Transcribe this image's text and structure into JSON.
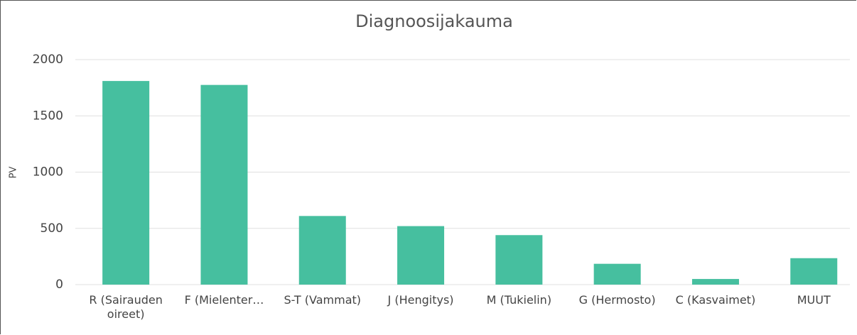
{
  "chart_data": {
    "type": "bar",
    "title": "Diagnoosijakauma",
    "y_label": "PV",
    "categories": [
      "R (Sairauden oireet)",
      "F (Mielenter…",
      "S-T (Vammat)",
      "J (Hengitys)",
      "M (Tukielin)",
      "G (Hermosto)",
      "C (Kasvaimet)",
      "MUUT"
    ],
    "values": [
      1810,
      1775,
      610,
      520,
      440,
      185,
      50,
      235
    ],
    "color": "#46bf9f",
    "ylim": [
      0,
      2000
    ],
    "yticks": [
      0,
      500,
      1000,
      1500,
      2000
    ],
    "grid": true
  }
}
